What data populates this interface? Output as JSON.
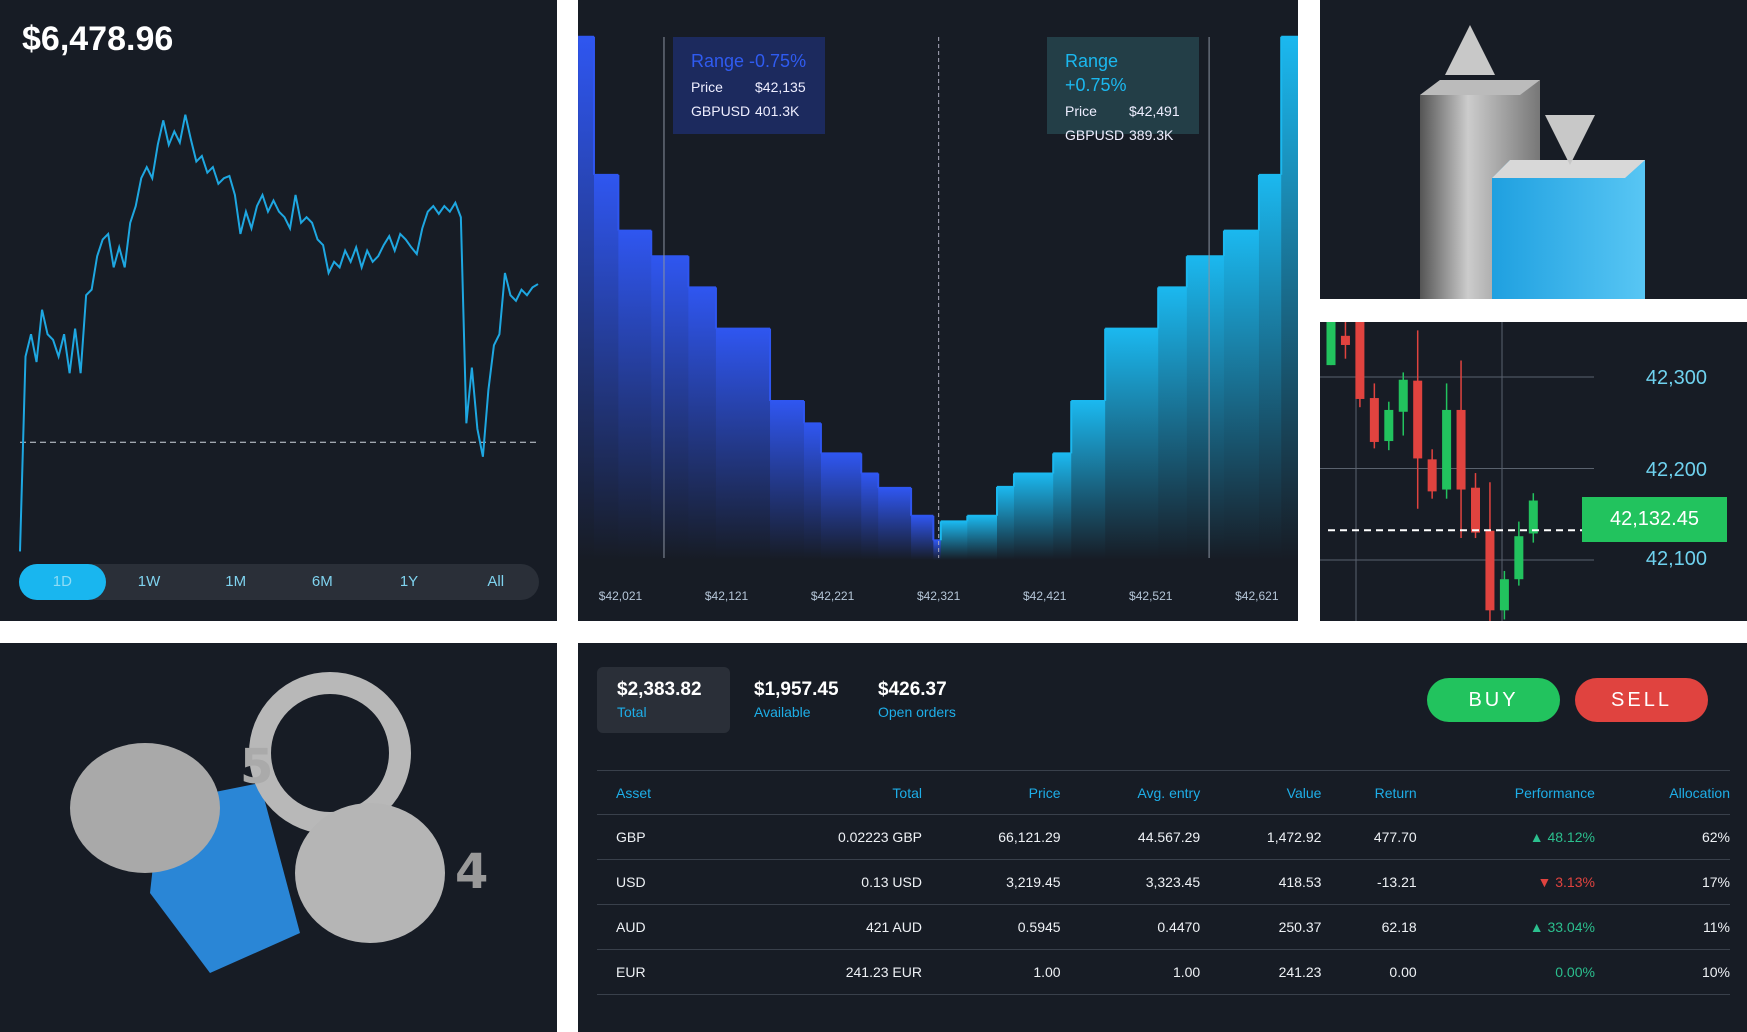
{
  "portfolio": {
    "balance": "$6,478.96",
    "ranges": [
      "1D",
      "1W",
      "1M",
      "6M",
      "1Y",
      "All"
    ],
    "active_range": "1D",
    "line_color": "#1ea7e1",
    "chart_data": {
      "type": "line",
      "values": [
        5,
        180,
        200,
        175,
        222,
        200,
        195,
        180,
        200,
        165,
        205,
        165,
        235,
        240,
        270,
        285,
        290,
        260,
        278,
        260,
        300,
        315,
        340,
        350,
        340,
        370,
        392,
        370,
        382,
        372,
        397,
        375,
        355,
        360,
        345,
        350,
        335,
        340,
        342,
        325,
        290,
        310,
        295,
        315,
        325,
        310,
        320,
        310,
        305,
        295,
        325,
        300,
        305,
        300,
        285,
        280,
        255,
        265,
        260,
        275,
        265,
        278,
        260,
        275,
        265,
        270,
        280,
        288,
        275,
        290,
        285,
        278,
        272,
        295,
        310,
        315,
        308,
        315,
        310,
        318,
        305,
        120,
        170,
        115,
        90,
        150,
        190,
        200,
        255,
        235,
        230,
        240,
        235,
        242,
        245
      ],
      "reference_value": 103
    }
  },
  "depth": {
    "left_box": {
      "title": "Range -0.75%",
      "price_label": "Price",
      "price": "$42,135",
      "pair_label": "GBPUSD",
      "pair_value": "401.3K"
    },
    "right_box": {
      "title": "Range +0.75%",
      "price_label": "Price",
      "price": "$42,491",
      "pair_label": "GBPUSD",
      "pair_value": "389.3K"
    },
    "colors": {
      "bid": "#2f56f0",
      "ask": "#1bb8ef"
    },
    "chart_data": {
      "type": "area",
      "x_ticks": [
        "$42,021",
        "$42,121",
        "$42,221",
        "$42,321",
        "$42,421",
        "$42,521",
        "$42,621"
      ],
      "mid_price": 42321,
      "range_low": 42062,
      "range_high": 42576,
      "steps": [
        [
          41981,
          41996,
          524
        ],
        [
          41996,
          42019,
          400
        ],
        [
          42019,
          42050,
          350
        ],
        [
          42050,
          42085,
          327
        ],
        [
          42085,
          42111,
          299
        ],
        [
          42111,
          42162,
          262
        ],
        [
          42162,
          42194,
          197
        ],
        [
          42194,
          42210,
          177
        ],
        [
          42210,
          42248,
          150
        ],
        [
          42248,
          42264,
          132
        ],
        [
          42264,
          42295,
          119
        ],
        [
          42295,
          42316,
          94
        ],
        [
          42316,
          42323,
          72
        ],
        [
          42323,
          42348,
          89
        ],
        [
          42348,
          42376,
          94
        ],
        [
          42376,
          42392,
          120
        ],
        [
          42392,
          42429,
          132
        ],
        [
          42429,
          42446,
          150
        ],
        [
          42446,
          42478,
          197
        ],
        [
          42478,
          42528,
          262
        ],
        [
          42528,
          42555,
          299
        ],
        [
          42555,
          42590,
          327
        ],
        [
          42590,
          42623,
          350
        ],
        [
          42623,
          42644,
          400
        ],
        [
          42644,
          42660,
          524
        ]
      ]
    }
  },
  "candles": {
    "y_labels": [
      "42,300",
      "42,200",
      "42,100"
    ],
    "current_price": "42,132.45",
    "colors": {
      "up": "#22c35e",
      "down": "#e0433f"
    },
    "chart_data": {
      "type": "candlestick",
      "ohlc": [
        [
          42313,
          42385,
          42313,
          42372
        ],
        [
          42345,
          42370,
          42320,
          42335
        ],
        [
          42365,
          42390,
          42267,
          42276
        ],
        [
          42277,
          42293,
          42222,
          42229
        ],
        [
          42230,
          42273,
          42220,
          42264
        ],
        [
          42262,
          42305,
          42236,
          42297
        ],
        [
          42296,
          42351,
          42156,
          42211
        ],
        [
          42210,
          42221,
          42167,
          42175
        ],
        [
          42177,
          42293,
          42167,
          42264
        ],
        [
          42264,
          42318,
          42124,
          42177
        ],
        [
          42179,
          42195,
          42124,
          42130
        ],
        [
          42132,
          42185,
          42010,
          42045
        ],
        [
          42045,
          42088,
          42035,
          42079
        ],
        [
          42079,
          42142,
          42072,
          42126
        ],
        [
          42129,
          42173,
          42119,
          42165
        ]
      ],
      "current": 42132.45
    }
  },
  "account": {
    "cards": [
      {
        "value": "$2,383.82",
        "label": "Total"
      },
      {
        "value": "$1,957.45",
        "label": "Available"
      },
      {
        "value": "$426.37",
        "label": "Open orders"
      }
    ],
    "buy_label": "BUY",
    "sell_label": "SELL",
    "table": {
      "headers": [
        "Asset",
        "Total",
        "Price",
        "Avg. entry",
        "Value",
        "Return",
        "Performance",
        "Allocation"
      ],
      "rows": [
        {
          "asset": "GBP",
          "total": "0.02223 GBP",
          "price": "66,121.29",
          "avg": "44.567.29",
          "value": "1,472.92",
          "ret": "477.70",
          "perf": "48.12%",
          "dir": "up",
          "alloc": "62%"
        },
        {
          "asset": "USD",
          "total": "0.13 USD",
          "price": "3,219.45",
          "avg": "3,323.45",
          "value": "418.53",
          "ret": "-13.21",
          "perf": "3.13%",
          "dir": "down",
          "alloc": "17%"
        },
        {
          "asset": "AUD",
          "total": "421 AUD",
          "price": "0.5945",
          "avg": "0.4470",
          "value": "250.37",
          "ret": "62.18",
          "perf": "33.04%",
          "dir": "up",
          "alloc": "11%"
        },
        {
          "asset": "EUR",
          "total": "241.23 EUR",
          "price": "1.00",
          "avg": "1.00",
          "value": "241.23",
          "ret": "0.00",
          "perf": "0.00%",
          "dir": "flat",
          "alloc": "10%"
        }
      ]
    }
  }
}
